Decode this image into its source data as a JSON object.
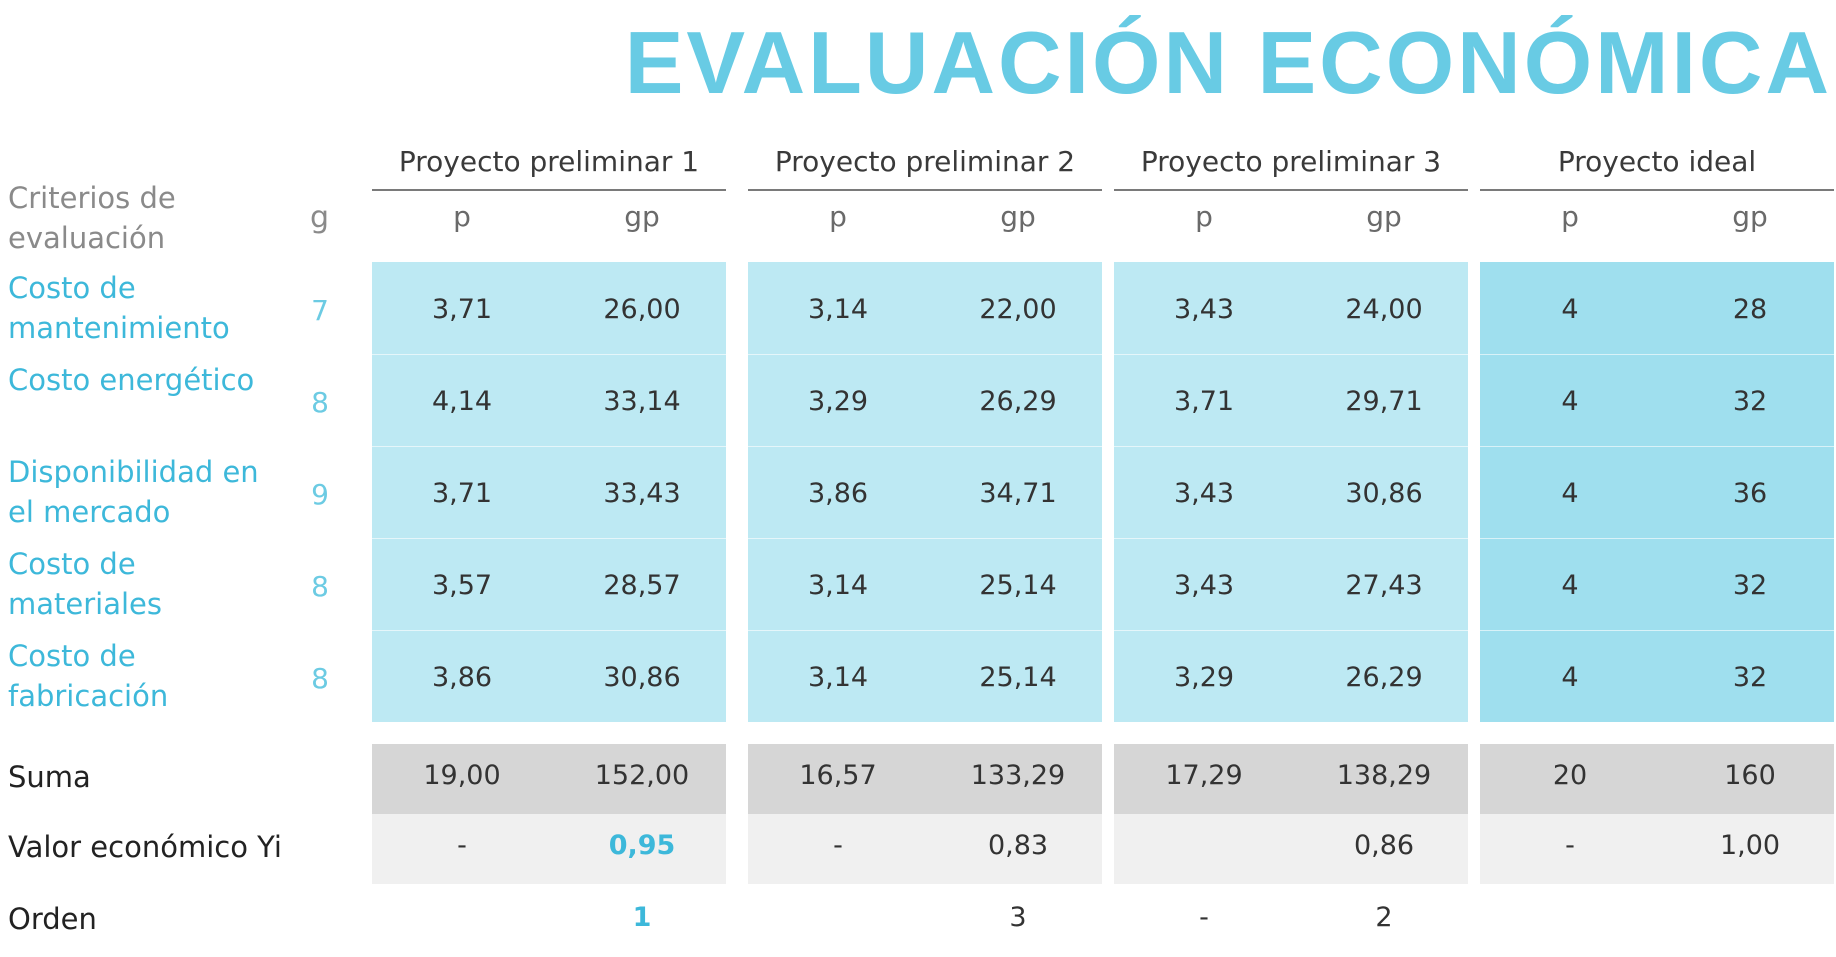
{
  "title": "EVALUACIÓN ECONÓMICA",
  "header": {
    "criteria_label": "Criterios de evaluación",
    "g_label": "g"
  },
  "projects": [
    {
      "name": "Proyecto preliminar 1",
      "p_label": "p",
      "gp_label": "gp"
    },
    {
      "name": "Proyecto preliminar 2",
      "p_label": "p",
      "gp_label": "gp"
    },
    {
      "name": "Proyecto preliminar 3",
      "p_label": "p",
      "gp_label": "gp"
    },
    {
      "name": "Proyecto ideal",
      "p_label": "p",
      "gp_label": "gp"
    }
  ],
  "criteria": [
    {
      "label": "Costo de mantenimiento",
      "g": "7",
      "values": [
        [
          "3,71",
          "26,00"
        ],
        [
          "3,14",
          "22,00"
        ],
        [
          "3,43",
          "24,00"
        ],
        [
          "4",
          "28"
        ]
      ]
    },
    {
      "label": "Costo energético",
      "g": "8",
      "values": [
        [
          "4,14",
          "33,14"
        ],
        [
          "3,29",
          "26,29"
        ],
        [
          "3,71",
          "29,71"
        ],
        [
          "4",
          "32"
        ]
      ]
    },
    {
      "label": "Disponibilidad en el mercado",
      "g": "9",
      "values": [
        [
          "3,71",
          "33,43"
        ],
        [
          "3,86",
          "34,71"
        ],
        [
          "3,43",
          "30,86"
        ],
        [
          "4",
          "36"
        ]
      ]
    },
    {
      "label": "Costo de materiales",
      "g": "8",
      "values": [
        [
          "3,57",
          "28,57"
        ],
        [
          "3,14",
          "25,14"
        ],
        [
          "3,43",
          "27,43"
        ],
        [
          "4",
          "32"
        ]
      ]
    },
    {
      "label": "Costo de fabricación",
      "g": "8",
      "values": [
        [
          "3,86",
          "30,86"
        ],
        [
          "3,14",
          "25,14"
        ],
        [
          "3,29",
          "26,29"
        ],
        [
          "4",
          "32"
        ]
      ]
    }
  ],
  "summary": {
    "suma_label": "Suma",
    "suma": [
      [
        "19,00",
        "152,00"
      ],
      [
        "16,57",
        "133,29"
      ],
      [
        "17,29",
        "138,29"
      ],
      [
        "20",
        "160"
      ]
    ],
    "valor_label": "Valor económico Yi",
    "valor": [
      [
        "-",
        "0,95"
      ],
      [
        "-",
        "0,83"
      ],
      [
        "",
        "0,86"
      ],
      [
        "-",
        "1,00"
      ]
    ],
    "orden_label": "Orden",
    "orden": [
      [
        "",
        "1"
      ],
      [
        "",
        "3"
      ],
      [
        "-",
        "2"
      ],
      [
        "",
        ""
      ]
    ]
  },
  "colors": {
    "title": "#68cbe4",
    "criteria_text": "#3db8da",
    "cell_block": "#bde9f3",
    "ideal_block": "#9fdfee",
    "sum_block": "#d6d6d6",
    "value_block": "#f0f0f0"
  }
}
